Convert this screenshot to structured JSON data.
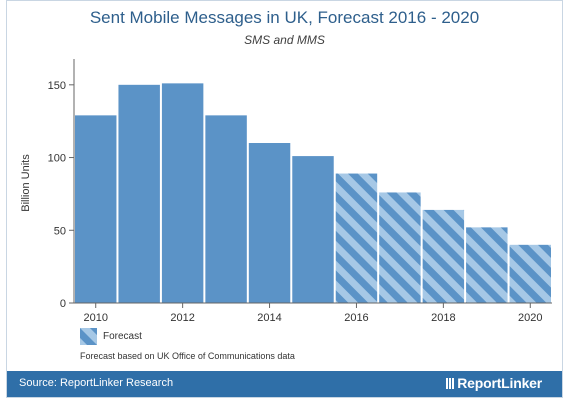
{
  "title": "Sent Mobile Messages in UK, Forecast 2016 - 2020",
  "subtitle": "SMS and MMS",
  "legend_label": "Forecast",
  "footnote": "Forecast based on UK Office of Communications data",
  "source": "Source: ReportLinker Research",
  "brand": "ReportLinker",
  "colors": {
    "bar": "#5b93c7",
    "stripe": "#a6c8e6",
    "footer": "#2f6fa8",
    "title": "#2e5f8c"
  },
  "chart_data": {
    "type": "bar",
    "title": "Sent Mobile Messages in UK, Forecast 2016 - 2020",
    "subtitle": "SMS and MMS",
    "ylabel": "Billion Units",
    "xlabel": "",
    "x": [
      2010,
      2011,
      2012,
      2013,
      2014,
      2015,
      2016,
      2017,
      2018,
      2019,
      2020
    ],
    "values": [
      129,
      150,
      151,
      129,
      110,
      101,
      89,
      76,
      64,
      52,
      40
    ],
    "forecast": [
      false,
      false,
      false,
      false,
      false,
      false,
      true,
      true,
      true,
      true,
      true
    ],
    "xticks": [
      "2010",
      "2012",
      "2014",
      "2016",
      "2018",
      "2020"
    ],
    "yticks": [
      0,
      50,
      100,
      150
    ],
    "ylim": [
      0,
      165
    ],
    "grid": false,
    "legend": "bottom-left"
  }
}
